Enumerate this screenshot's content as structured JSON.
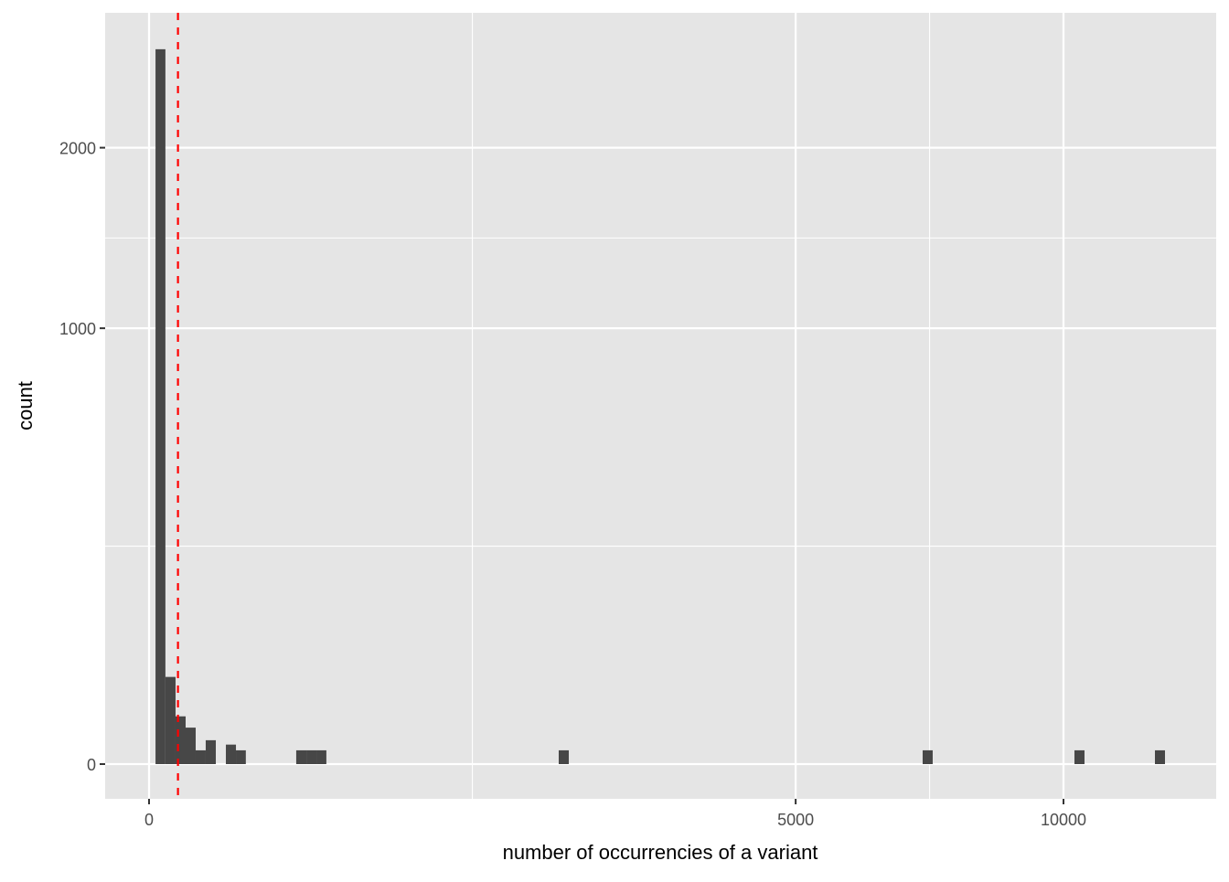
{
  "chart_data": {
    "type": "bar",
    "subtype": "histogram",
    "x_scale": "sqrt",
    "y_scale": "sqrt",
    "xlabel": "number of occurrencies of a variant",
    "ylabel": "count",
    "x_ticks": [
      0,
      5000,
      10000
    ],
    "x_tick_labels": [
      "0",
      "5000",
      "10000"
    ],
    "x_minor_ticks": [
      1250,
      7286
    ],
    "y_ticks": [
      0,
      1000,
      2000
    ],
    "y_tick_labels": [
      "0",
      "1000",
      "2000"
    ],
    "y_minor_ticks": [
      250,
      1457
    ],
    "grid": true,
    "bins": [
      {
        "xmin": 0.5,
        "xmax": 3.2,
        "count": 2690
      },
      {
        "xmin": 3.2,
        "xmax": 8.4,
        "count": 40
      },
      {
        "xmin": 8.4,
        "xmax": 16,
        "count": 12
      },
      {
        "xmin": 16,
        "xmax": 26,
        "count": 7
      },
      {
        "xmin": 26,
        "xmax": 38.4,
        "count": 1
      },
      {
        "xmin": 38.4,
        "xmax": 53.3,
        "count": 3
      },
      {
        "xmin": 70.6,
        "xmax": 90.3,
        "count": 2
      },
      {
        "xmin": 90.3,
        "xmax": 112,
        "count": 1
      },
      {
        "xmin": 259,
        "xmax": 296,
        "count": 1
      },
      {
        "xmin": 296,
        "xmax": 335,
        "count": 1
      },
      {
        "xmin": 335,
        "xmax": 376,
        "count": 1
      },
      {
        "xmin": 2007,
        "xmax": 2107,
        "count": 1
      },
      {
        "xmin": 7157,
        "xmax": 7344,
        "count": 1
      },
      {
        "xmin": 10241,
        "xmax": 10465,
        "count": 1
      },
      {
        "xmin": 12100,
        "xmax": 12343,
        "count": 1
      }
    ],
    "vline": {
      "x": 10,
      "style": "dashed",
      "color": "#ff0000"
    },
    "colors": {
      "bar": "#474747",
      "panel": "#e5e5e5",
      "grid": "#ffffff"
    }
  }
}
